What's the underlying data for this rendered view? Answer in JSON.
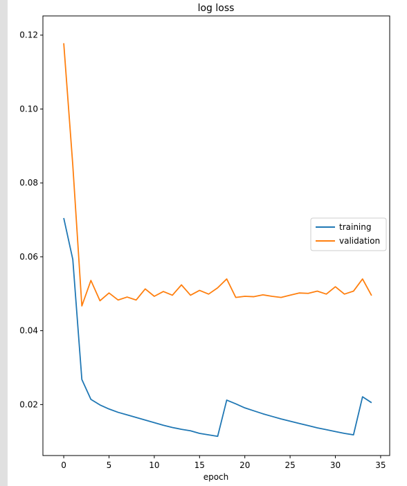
{
  "chart_data": {
    "type": "line",
    "title": "log loss",
    "xlabel": "epoch",
    "ylabel": "",
    "xlim": [
      -2.3,
      36
    ],
    "ylim": [
      0.0062,
      0.1252
    ],
    "xticks": [
      0,
      5,
      10,
      15,
      20,
      25,
      30,
      35
    ],
    "yticks": [
      0.02,
      0.04,
      0.06,
      0.08,
      0.1,
      0.12
    ],
    "ytick_labels": [
      "0.02",
      "0.04",
      "0.06",
      "0.08",
      "0.10",
      "0.12"
    ],
    "xtick_labels": [
      "0",
      "5",
      "10",
      "15",
      "20",
      "25",
      "30",
      "35"
    ],
    "grid": false,
    "legend_position": "center-right",
    "x": [
      0,
      1,
      2,
      3,
      4,
      5,
      6,
      7,
      8,
      9,
      10,
      11,
      12,
      13,
      14,
      15,
      16,
      17,
      18,
      19,
      20,
      21,
      22,
      23,
      24,
      25,
      26,
      27,
      28,
      29,
      30,
      31,
      32,
      33,
      34
    ],
    "series": [
      {
        "name": "training",
        "color": "#1f77b4",
        "values": [
          0.0705,
          0.0593,
          0.0268,
          0.0214,
          0.0199,
          0.0188,
          0.0179,
          0.0172,
          0.0165,
          0.0158,
          0.0151,
          0.0144,
          0.0138,
          0.0133,
          0.0129,
          0.0122,
          0.0118,
          0.0114,
          0.0212,
          0.0202,
          0.0191,
          0.0183,
          0.0175,
          0.0168,
          0.0161,
          0.0155,
          0.0149,
          0.0143,
          0.0137,
          0.0132,
          0.0127,
          0.0122,
          0.0118,
          0.0221,
          0.0205
        ]
      },
      {
        "name": "validation",
        "color": "#ff7f0e",
        "values": [
          0.1178,
          0.0848,
          0.0467,
          0.0536,
          0.0481,
          0.0502,
          0.0483,
          0.0491,
          0.0483,
          0.0513,
          0.0493,
          0.0506,
          0.0496,
          0.0524,
          0.0496,
          0.0509,
          0.0499,
          0.0516,
          0.054,
          0.049,
          0.0493,
          0.0492,
          0.0497,
          0.0493,
          0.049,
          0.0496,
          0.0502,
          0.0501,
          0.0507,
          0.0499,
          0.0519,
          0.0499,
          0.0507,
          0.054,
          0.0495
        ]
      }
    ]
  }
}
